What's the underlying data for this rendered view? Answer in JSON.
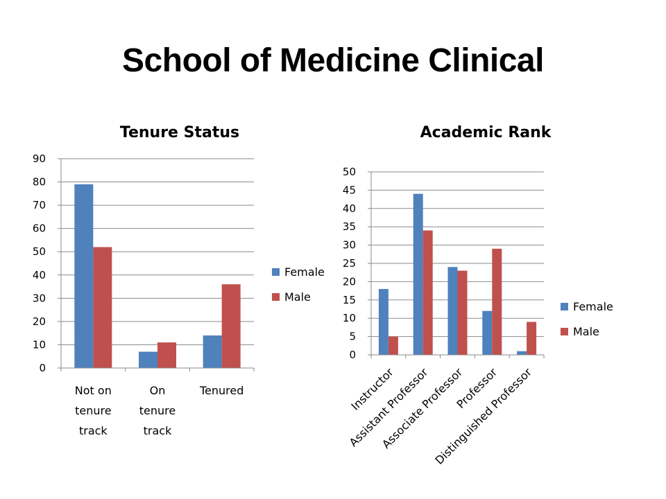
{
  "slide": {
    "title": "School of Medicine Clinical"
  },
  "chart_data": [
    {
      "type": "bar",
      "title": "Tenure Status",
      "categories": [
        "Not on tenure track",
        "On tenure track",
        "Tenured"
      ],
      "series": [
        {
          "name": "Female",
          "color": "#4F81BD",
          "values": [
            79,
            7,
            14
          ]
        },
        {
          "name": "Male",
          "color": "#C0504D",
          "values": [
            52,
            11,
            36
          ]
        }
      ],
      "ylim": [
        0,
        90
      ],
      "yticks": [
        0,
        10,
        20,
        30,
        40,
        50,
        60,
        70,
        80,
        90
      ],
      "grid": true,
      "legend": "right"
    },
    {
      "type": "bar",
      "title": "Academic Rank",
      "categories": [
        "Instructor",
        "Assistant Professor",
        "Associate Professor",
        "Professor",
        "Distinguished Professor"
      ],
      "series": [
        {
          "name": "Female",
          "color": "#4F81BD",
          "values": [
            18,
            44,
            24,
            12,
            1
          ]
        },
        {
          "name": "Male",
          "color": "#C0504D",
          "values": [
            5,
            34,
            23,
            29,
            9
          ]
        }
      ],
      "ylim": [
        0,
        50
      ],
      "yticks": [
        0,
        5,
        10,
        15,
        20,
        25,
        30,
        35,
        40,
        45,
        50
      ],
      "grid": true,
      "legend": "right"
    }
  ]
}
